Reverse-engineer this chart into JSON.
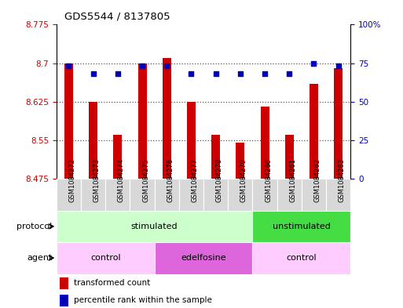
{
  "title": "GDS5544 / 8137805",
  "samples": [
    "GSM1084272",
    "GSM1084273",
    "GSM1084274",
    "GSM1084275",
    "GSM1084276",
    "GSM1084277",
    "GSM1084278",
    "GSM1084279",
    "GSM1084260",
    "GSM1084261",
    "GSM1084262",
    "GSM1084263"
  ],
  "bar_values": [
    8.7,
    8.625,
    8.56,
    8.7,
    8.71,
    8.625,
    8.56,
    8.545,
    8.615,
    8.56,
    8.66,
    8.69
  ],
  "percentile_values": [
    73,
    68,
    68,
    73,
    73,
    68,
    68,
    68,
    68,
    68,
    75,
    73
  ],
  "ymin": 8.475,
  "ymax": 8.775,
  "yticks": [
    8.475,
    8.55,
    8.625,
    8.7,
    8.775
  ],
  "ytick_labels": [
    "8.475",
    "8.55",
    "8.625",
    "8.7",
    "8.775"
  ],
  "right_yticks": [
    0,
    25,
    50,
    75,
    100
  ],
  "right_ytick_labels": [
    "0",
    "25",
    "50",
    "75",
    "100%"
  ],
  "bar_color": "#cc0000",
  "dot_color": "#0000bb",
  "bar_width": 0.35,
  "protocol_groups": [
    {
      "label": "stimulated",
      "start": 0,
      "end": 8,
      "color": "#ccffcc"
    },
    {
      "label": "unstimulated",
      "start": 8,
      "end": 12,
      "color": "#44dd44"
    }
  ],
  "agent_groups": [
    {
      "label": "control",
      "start": 0,
      "end": 4,
      "color": "#ffccff"
    },
    {
      "label": "edelfosine",
      "start": 4,
      "end": 8,
      "color": "#dd66dd"
    },
    {
      "label": "control",
      "start": 8,
      "end": 12,
      "color": "#ffccff"
    }
  ],
  "sample_bg_color": "#d8d8d8",
  "legend_bar_color": "#cc0000",
  "legend_dot_color": "#0000bb",
  "tick_color_left": "#cc0000",
  "tick_color_right": "#0000bb",
  "dotted_line_color": "#555555",
  "dotted_lines": [
    8.55,
    8.625,
    8.7
  ]
}
